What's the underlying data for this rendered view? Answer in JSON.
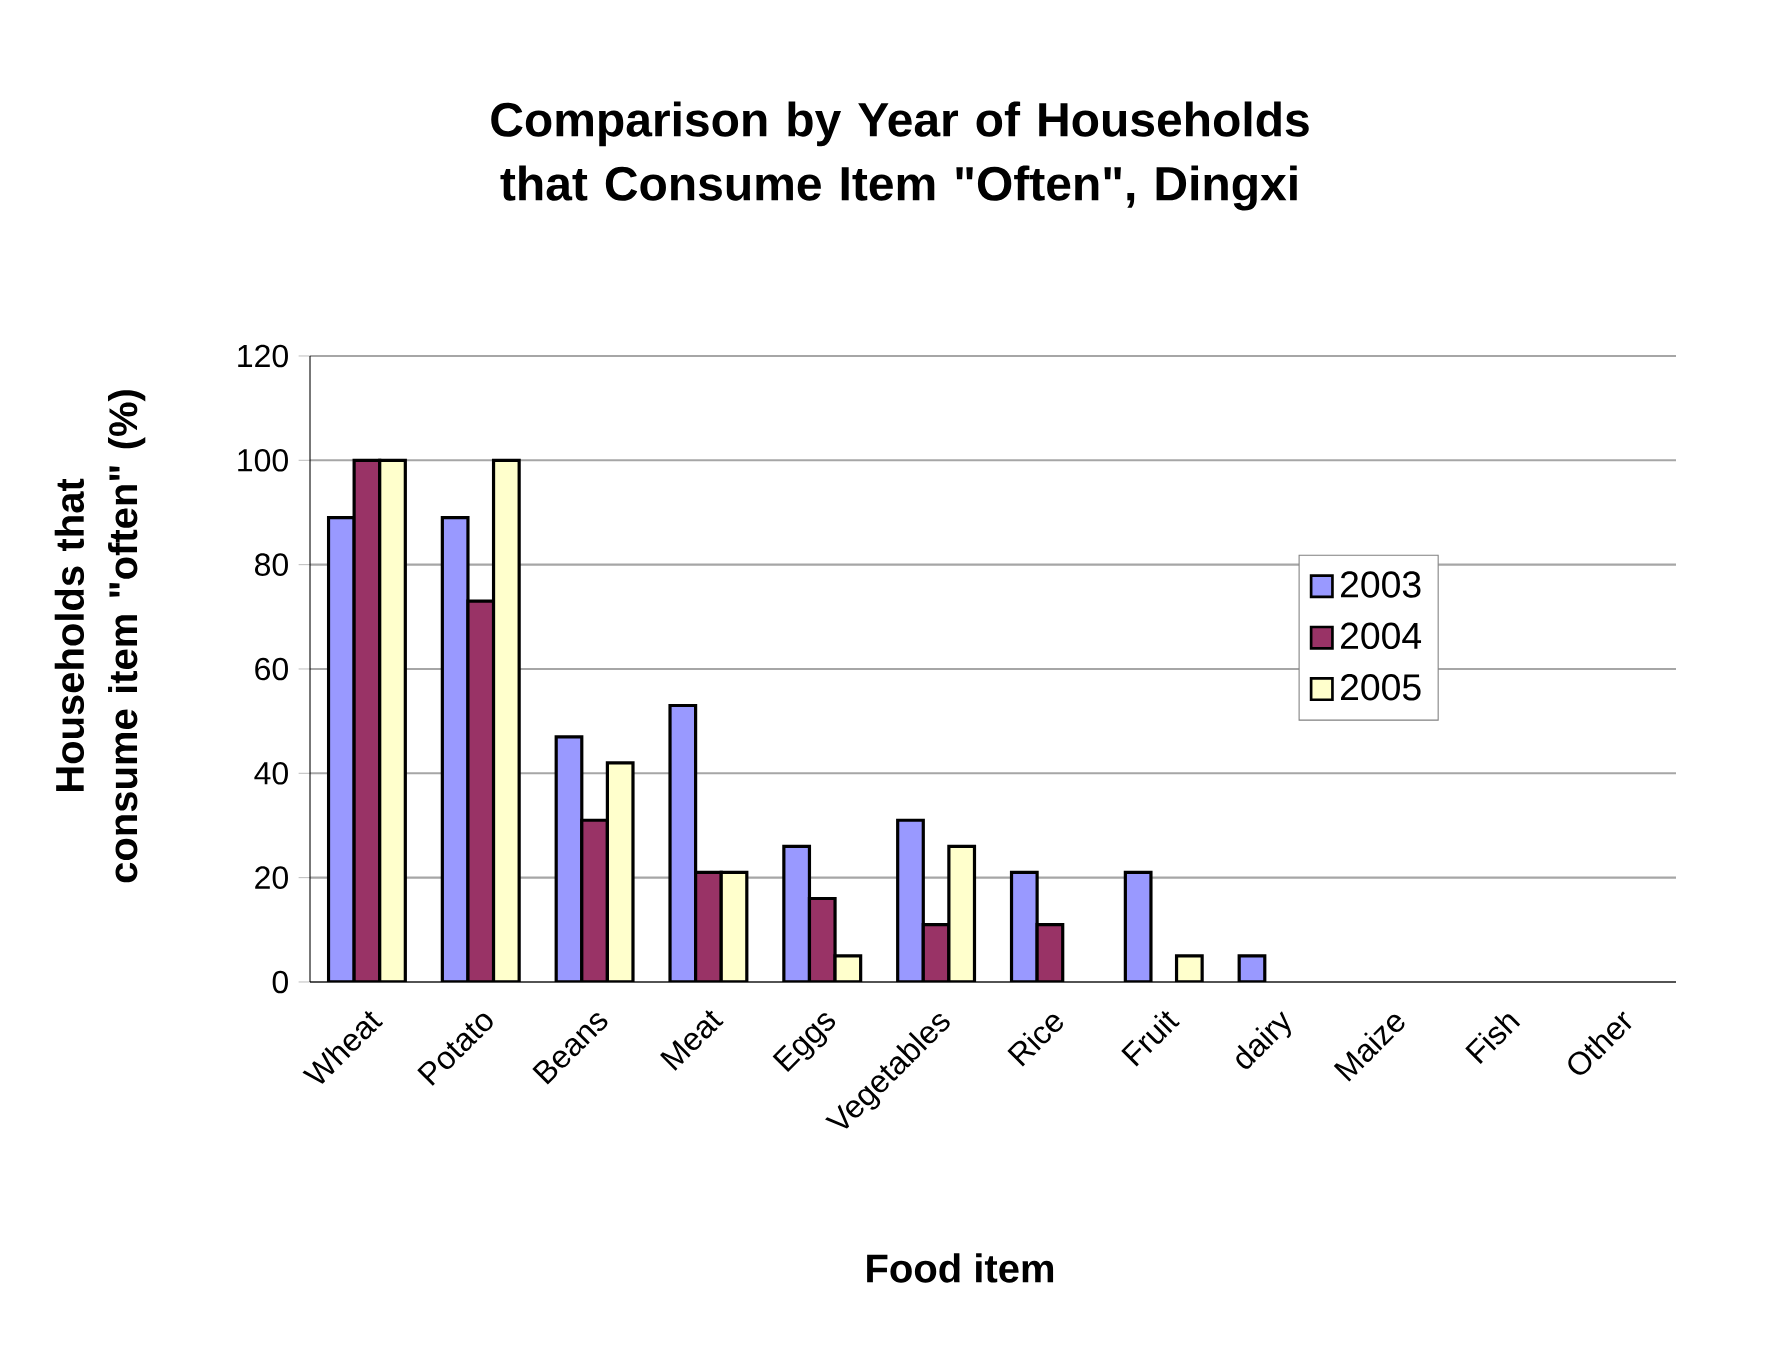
{
  "chart_data": {
    "type": "bar",
    "title": "Comparison by Year of Households that Consume Item \"Often\", Dingxi",
    "xlabel": "Food item",
    "ylabel": "Households that consume item \"often\" (%)",
    "categories": [
      "Wheat",
      "Potato",
      "Beans",
      "Meat",
      "Eggs",
      "Vegetables",
      "Rice",
      "Fruit",
      "dairy",
      "Maize",
      "Fish",
      "Other"
    ],
    "series": [
      {
        "name": "2003",
        "color": "#9999ff",
        "values": [
          89,
          89,
          47,
          53,
          26,
          31,
          21,
          21,
          5,
          null,
          null,
          null
        ]
      },
      {
        "name": "2004",
        "color": "#993366",
        "values": [
          100,
          73,
          31,
          21,
          16,
          11,
          11,
          null,
          null,
          null,
          null,
          null
        ]
      },
      {
        "name": "2005",
        "color": "#ffffcc",
        "values": [
          100,
          100,
          42,
          21,
          5,
          26,
          null,
          5,
          null,
          null,
          null,
          null
        ]
      }
    ],
    "ylim": [
      0,
      120
    ],
    "yticks": [
      0,
      20,
      40,
      60,
      80,
      100,
      120
    ],
    "grid": "y",
    "legend": "right"
  }
}
